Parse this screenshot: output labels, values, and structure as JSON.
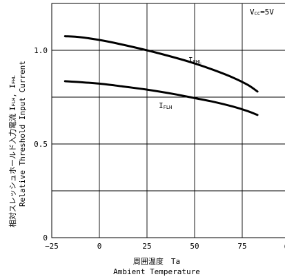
{
  "chart_data": {
    "type": "line",
    "xlim": [
      -25,
      100
    ],
    "ylim": [
      0,
      1.25
    ],
    "grid": true,
    "x_ticks": [
      {
        "v": -25,
        "label": "−25"
      },
      {
        "v": 0,
        "label": "0"
      },
      {
        "v": 25,
        "label": "25"
      },
      {
        "v": 50,
        "label": "50"
      },
      {
        "v": 75,
        "label": "75"
      },
      {
        "v": 100,
        "label": "(°C"
      }
    ],
    "y_ticks": [
      {
        "v": 0,
        "label": "0"
      },
      {
        "v": 0.5,
        "label": "0.5"
      },
      {
        "v": 1.0,
        "label": "1.0"
      }
    ],
    "xlabel_jp": "周囲温度　Ta",
    "xlabel_en": "Ambient Temperature",
    "ylabel_jp": "相対スレッシュホールド入力電流",
    "ylabel_en": "Relative Threshold Input Current",
    "ylabel_symbol": {
      "base1": "I",
      "sub1": "FLH",
      "sep": ", ",
      "base2": "I",
      "sub2": "FHL"
    },
    "condition": {
      "base": "V",
      "sub": "CC",
      "rest": "=5V"
    },
    "series": [
      {
        "name": "IFHL",
        "label_base": "I",
        "label_sub": "FHL",
        "x": [
          -18,
          -10,
          0,
          10,
          25,
          40,
          50,
          60,
          70,
          78,
          83
        ],
        "y": [
          1.075,
          1.07,
          1.055,
          1.035,
          1.0,
          0.96,
          0.93,
          0.895,
          0.855,
          0.815,
          0.78
        ]
      },
      {
        "name": "IFLH",
        "label_base": "I",
        "label_sub": "FLH",
        "x": [
          -18,
          -10,
          0,
          10,
          25,
          40,
          50,
          60,
          70,
          78,
          83
        ],
        "y": [
          0.835,
          0.83,
          0.822,
          0.81,
          0.79,
          0.765,
          0.745,
          0.725,
          0.7,
          0.675,
          0.655
        ]
      }
    ]
  }
}
